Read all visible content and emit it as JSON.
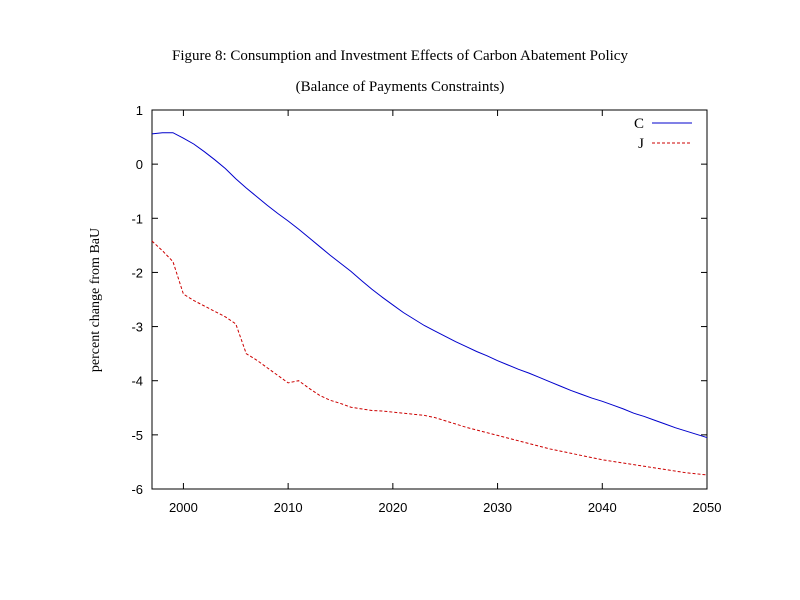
{
  "chart_data": {
    "type": "line",
    "title": "Figure 8: Consumption and Investment Effects of Carbon Abatement Policy",
    "subtitle": "(Balance of Payments Constraints)",
    "xlabel": "",
    "ylabel": "percent change from BaU",
    "xlim": [
      1997,
      2050
    ],
    "ylim": [
      -6,
      1
    ],
    "xticks": [
      2000,
      2010,
      2020,
      2030,
      2040,
      2050
    ],
    "yticks": [
      1,
      0,
      -1,
      -2,
      -3,
      -4,
      -5,
      -6
    ],
    "grid": false,
    "legend_position": "top-right",
    "series": [
      {
        "name": "C",
        "color": "#0000cc",
        "dash": "solid",
        "points": [
          [
            1997,
            0.56
          ],
          [
            1998,
            0.58
          ],
          [
            1999,
            0.58
          ],
          [
            2000,
            0.48
          ],
          [
            2001,
            0.37
          ],
          [
            2002,
            0.23
          ],
          [
            2003,
            0.08
          ],
          [
            2004,
            -0.08
          ],
          [
            2005,
            -0.27
          ],
          [
            2006,
            -0.44
          ],
          [
            2007,
            -0.6
          ],
          [
            2008,
            -0.76
          ],
          [
            2009,
            -0.91
          ],
          [
            2010,
            -1.05
          ],
          [
            2011,
            -1.2
          ],
          [
            2012,
            -1.36
          ],
          [
            2013,
            -1.52
          ],
          [
            2014,
            -1.68
          ],
          [
            2015,
            -1.83
          ],
          [
            2016,
            -1.98
          ],
          [
            2017,
            -2.15
          ],
          [
            2018,
            -2.31
          ],
          [
            2019,
            -2.46
          ],
          [
            2020,
            -2.6
          ],
          [
            2021,
            -2.74
          ],
          [
            2022,
            -2.86
          ],
          [
            2023,
            -2.98
          ],
          [
            2024,
            -3.08
          ],
          [
            2025,
            -3.18
          ],
          [
            2026,
            -3.28
          ],
          [
            2027,
            -3.37
          ],
          [
            2028,
            -3.46
          ],
          [
            2029,
            -3.54
          ],
          [
            2030,
            -3.63
          ],
          [
            2031,
            -3.71
          ],
          [
            2032,
            -3.79
          ],
          [
            2033,
            -3.86
          ],
          [
            2034,
            -3.94
          ],
          [
            2035,
            -4.02
          ],
          [
            2036,
            -4.1
          ],
          [
            2037,
            -4.18
          ],
          [
            2038,
            -4.25
          ],
          [
            2039,
            -4.32
          ],
          [
            2040,
            -4.38
          ],
          [
            2041,
            -4.45
          ],
          [
            2042,
            -4.52
          ],
          [
            2043,
            -4.6
          ],
          [
            2044,
            -4.66
          ],
          [
            2045,
            -4.73
          ],
          [
            2046,
            -4.8
          ],
          [
            2047,
            -4.87
          ],
          [
            2048,
            -4.93
          ],
          [
            2049,
            -4.99
          ],
          [
            2050,
            -5.05
          ]
        ]
      },
      {
        "name": "J",
        "color": "#cc0000",
        "dash": "dashed",
        "points": [
          [
            1997,
            -1.42
          ],
          [
            1998,
            -1.6
          ],
          [
            1999,
            -1.8
          ],
          [
            2000,
            -2.4
          ],
          [
            2001,
            -2.52
          ],
          [
            2002,
            -2.62
          ],
          [
            2003,
            -2.72
          ],
          [
            2004,
            -2.82
          ],
          [
            2005,
            -2.95
          ],
          [
            2006,
            -3.5
          ],
          [
            2007,
            -3.62
          ],
          [
            2008,
            -3.76
          ],
          [
            2009,
            -3.9
          ],
          [
            2010,
            -4.04
          ],
          [
            2011,
            -4.0
          ],
          [
            2012,
            -4.14
          ],
          [
            2013,
            -4.27
          ],
          [
            2014,
            -4.36
          ],
          [
            2015,
            -4.42
          ],
          [
            2016,
            -4.49
          ],
          [
            2017,
            -4.52
          ],
          [
            2018,
            -4.55
          ],
          [
            2019,
            -4.56
          ],
          [
            2020,
            -4.58
          ],
          [
            2021,
            -4.6
          ],
          [
            2022,
            -4.62
          ],
          [
            2023,
            -4.64
          ],
          [
            2024,
            -4.68
          ],
          [
            2025,
            -4.74
          ],
          [
            2026,
            -4.8
          ],
          [
            2027,
            -4.86
          ],
          [
            2028,
            -4.91
          ],
          [
            2029,
            -4.96
          ],
          [
            2030,
            -5.01
          ],
          [
            2031,
            -5.06
          ],
          [
            2032,
            -5.11
          ],
          [
            2033,
            -5.16
          ],
          [
            2034,
            -5.21
          ],
          [
            2035,
            -5.26
          ],
          [
            2036,
            -5.3
          ],
          [
            2037,
            -5.34
          ],
          [
            2038,
            -5.38
          ],
          [
            2039,
            -5.42
          ],
          [
            2040,
            -5.46
          ],
          [
            2041,
            -5.49
          ],
          [
            2042,
            -5.52
          ],
          [
            2043,
            -5.55
          ],
          [
            2044,
            -5.58
          ],
          [
            2045,
            -5.61
          ],
          [
            2046,
            -5.64
          ],
          [
            2047,
            -5.67
          ],
          [
            2048,
            -5.7
          ],
          [
            2049,
            -5.72
          ],
          [
            2050,
            -5.74
          ]
        ]
      }
    ]
  }
}
